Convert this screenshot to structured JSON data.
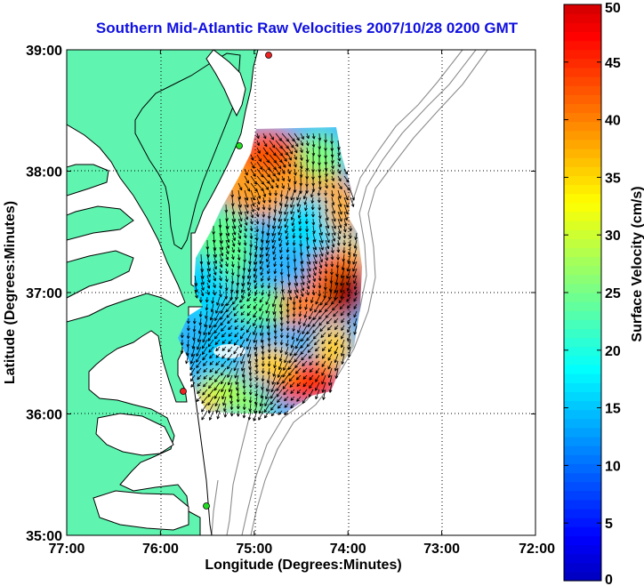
{
  "chart_data": {
    "type": "heatmap",
    "title": "Southern Mid-Atlantic Raw Velocities 2007/10/28 0200 GMT",
    "xlabel": "Longitude (Degrees:Minutes)",
    "ylabel": "Latitude (Degrees:Minutes)",
    "x_ticks": [
      -77,
      -76,
      -75,
      -74,
      -73,
      -72
    ],
    "x_tick_labels": [
      "77:00",
      "76:00",
      "75:00",
      "74:00",
      "73:00",
      "72:00"
    ],
    "y_ticks": [
      35,
      36,
      37,
      38,
      39
    ],
    "y_tick_labels": [
      "35:00",
      "36:00",
      "37:00",
      "38:00",
      "39:00"
    ],
    "xlim": [
      -77,
      -72
    ],
    "ylim": [
      35,
      39
    ],
    "grid": true,
    "colorbar": {
      "label": "Surface Velocity (cm/s)",
      "ticks": [
        0,
        5,
        10,
        15,
        20,
        25,
        30,
        35,
        40,
        45,
        50
      ],
      "range": [
        0,
        50
      ],
      "colormap": "jet"
    },
    "colors": {
      "land": "#5ff5b0",
      "coast": "#000000",
      "bathymetry": "#8c8c8c",
      "title": "#1010e0",
      "grid": "#000000",
      "station_green": "#22dd22",
      "station_red": "#ee2222"
    },
    "stations": [
      {
        "lon": -74.85,
        "lat": 38.97,
        "color": "red"
      },
      {
        "lon": -75.13,
        "lat": 38.22,
        "color": "green"
      },
      {
        "lon": -75.75,
        "lat": 36.18,
        "color": "red"
      },
      {
        "lon": -75.5,
        "lat": 35.25,
        "color": "green"
      }
    ],
    "velocity_regions": [
      {
        "region": "northwest (37.8-38.0N, 75.0-74.6W)",
        "speed_cm_s": 35
      },
      {
        "region": "central (37.2-37.6N, 74.9-74.4W)",
        "speed_cm_s": 15
      },
      {
        "region": "west (36.9-37.2N, 75.5-75.1W)",
        "speed_cm_s": 12
      },
      {
        "region": "east (36.9-37.2N, 74.3-74.0W)",
        "speed_cm_s": 45
      },
      {
        "region": "south (36.2-36.5N, 74.6-74.3W)",
        "speed_cm_s": 40
      },
      {
        "region": "southwest (36.0-36.3N, 75.4-75.0W)",
        "speed_cm_s": 20
      }
    ]
  }
}
